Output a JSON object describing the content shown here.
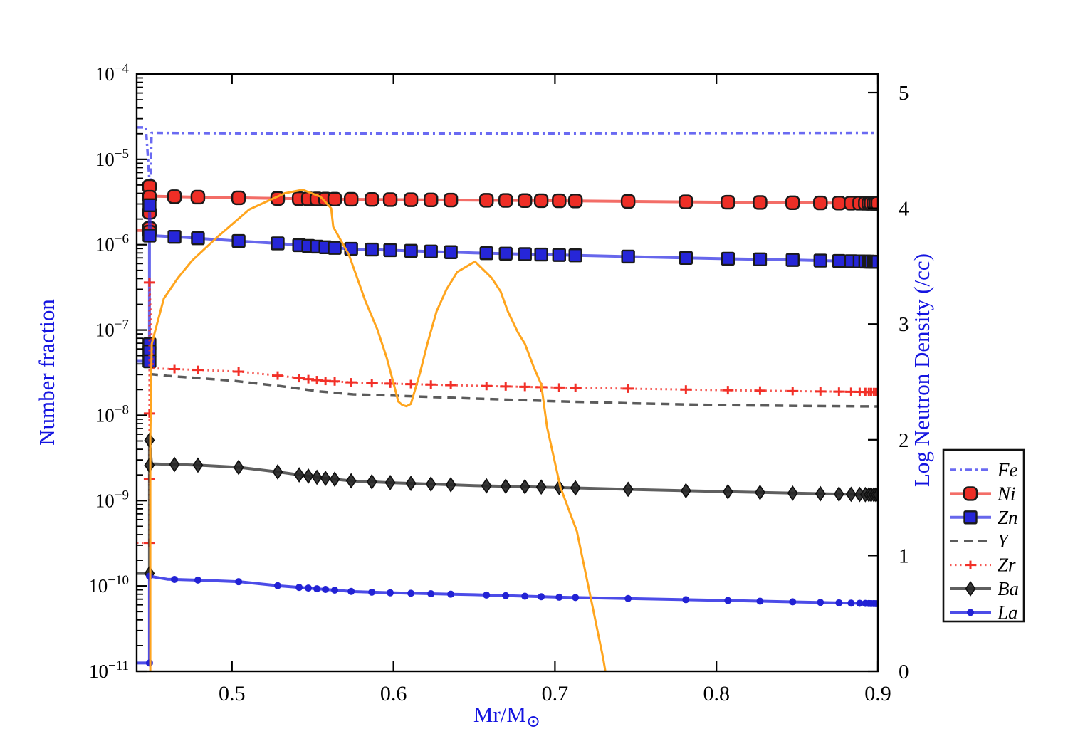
{
  "chart_data": {
    "type": "line",
    "title": "",
    "xlabel": "Mr/M",
    "xlabel_subscript": "⊙",
    "ylabel_left": "Number fraction",
    "ylabel_right": "Log Neutron Density (/cc)",
    "xlim": [
      0.441,
      0.9
    ],
    "x_ticks": [
      0.5,
      0.6,
      0.7,
      0.8,
      0.9
    ],
    "x_tick_labels": [
      "0.5",
      "0.6",
      "0.7",
      "0.8",
      "0.9"
    ],
    "ylim_left_log10": [
      -11,
      -4
    ],
    "y_ticks_left_exponents": [
      -4,
      -5,
      -6,
      -7,
      -8,
      -9,
      -10,
      -11
    ],
    "ylim_right": [
      0,
      5.16
    ],
    "y_ticks_right": [
      0,
      1,
      2,
      3,
      4,
      5
    ],
    "grid": false,
    "legend_position": "right-outside",
    "axis_color": "#000000",
    "label_color": "#1414e0",
    "marker_mesh_x": [
      0.4644,
      0.4789,
      0.5041,
      0.5283,
      0.5416,
      0.5473,
      0.5526,
      0.5579,
      0.5636,
      0.5738,
      0.5866,
      0.598,
      0.6108,
      0.6232,
      0.6355,
      0.6576,
      0.6695,
      0.6814,
      0.6915,
      0.7026,
      0.7127,
      0.7453,
      0.7811,
      0.8071,
      0.827,
      0.8472,
      0.8644,
      0.8759,
      0.8834,
      0.8887,
      0.8922,
      0.8944,
      0.8958,
      0.8975,
      0.8988,
      0.9
    ],
    "spike_x": 0.4489,
    "series": [
      {
        "name": "Fe",
        "axis": "left",
        "style": "dashdot",
        "marker": "none",
        "line_color": "rgba(80,80,240,0.85)",
        "line_width": 3.5,
        "points": [
          [
            0.441,
            2.37e-05
          ],
          [
            0.4467,
            2.37e-05
          ],
          [
            0.4494,
            4e-06
          ],
          [
            0.4502,
            2.05e-05
          ],
          [
            0.55,
            2e-05
          ],
          [
            0.9,
            2.05e-05
          ]
        ],
        "spike_markers": []
      },
      {
        "name": "Ni",
        "axis": "left",
        "style": "solid",
        "marker": "circle",
        "line_color": "rgba(238,52,45,0.72)",
        "line_width": 4,
        "marker_fill": "#ee2e26",
        "marker_edge": "#1a1a1a",
        "points": [
          [
            0.441,
            1.47e-06
          ],
          [
            0.4489,
            1.47e-06
          ],
          [
            0.4489,
            4.8e-06
          ],
          [
            0.4502,
            3.7e-06
          ],
          [
            0.48,
            3.6e-06
          ],
          [
            0.52,
            3.5e-06
          ],
          [
            0.56,
            3.42e-06
          ],
          [
            0.62,
            3.35e-06
          ],
          [
            0.7,
            3.27e-06
          ],
          [
            0.8,
            3.15e-06
          ],
          [
            0.9,
            3.05e-06
          ]
        ],
        "spike_markers": [
          4.8e-06,
          3.6e-06,
          2.4e-06,
          1.55e-06,
          1.4e-06
        ]
      },
      {
        "name": "Zn",
        "axis": "left",
        "style": "solid",
        "marker": "square",
        "line_color": "rgba(45,45,228,0.72)",
        "line_width": 4,
        "marker_fill": "#2626d8",
        "marker_edge": "#1a1a1a",
        "points": [
          [
            0.441,
            4.3e-08
          ],
          [
            0.4489,
            4.3e-08
          ],
          [
            0.4489,
            2.9e-06
          ],
          [
            0.4496,
            1.28e-06
          ],
          [
            0.47,
            1.22e-06
          ],
          [
            0.505,
            1.1e-06
          ],
          [
            0.53,
            1.03e-06
          ],
          [
            0.555,
            9.4e-07
          ],
          [
            0.575,
            8.9e-07
          ],
          [
            0.6,
            8.6e-07
          ],
          [
            0.65,
            8e-07
          ],
          [
            0.7,
            7.6e-07
          ],
          [
            0.78,
            7e-07
          ],
          [
            0.85,
            6.6e-07
          ],
          [
            0.9,
            6.3e-07
          ]
        ],
        "spike_markers": [
          2.9e-06,
          1.28e-06,
          6.8e-08,
          5.6e-08,
          4.3e-08
        ]
      },
      {
        "name": "Y",
        "axis": "left",
        "style": "dashed",
        "marker": "none",
        "line_color": "rgba(62,62,62,0.85)",
        "line_width": 3.5,
        "points": [
          [
            0.4489,
            3.05e-08
          ],
          [
            0.46,
            2.9e-08
          ],
          [
            0.5,
            2.55e-08
          ],
          [
            0.53,
            2.2e-08
          ],
          [
            0.555,
            1.9e-08
          ],
          [
            0.575,
            1.76e-08
          ],
          [
            0.6,
            1.7e-08
          ],
          [
            0.65,
            1.57e-08
          ],
          [
            0.7,
            1.46e-08
          ],
          [
            0.75,
            1.38e-08
          ],
          [
            0.8,
            1.32e-08
          ],
          [
            0.85,
            1.29e-08
          ],
          [
            0.9,
            1.27e-08
          ]
        ],
        "spike_markers": []
      },
      {
        "name": "Zr",
        "axis": "left",
        "style": "dotted",
        "marker": "plus",
        "line_color": "rgba(242,48,40,0.8)",
        "line_width": 3,
        "marker_fill": "#f23028",
        "marker_edge": "#f23028",
        "points": [
          [
            0.441,
            3.2e-10
          ],
          [
            0.4489,
            3.2e-10
          ],
          [
            0.4489,
            3.6e-07
          ],
          [
            0.451,
            3.55e-08
          ],
          [
            0.48,
            3.4e-08
          ],
          [
            0.505,
            3.25e-08
          ],
          [
            0.53,
            2.9e-08
          ],
          [
            0.555,
            2.55e-08
          ],
          [
            0.58,
            2.4e-08
          ],
          [
            0.62,
            2.3e-08
          ],
          [
            0.66,
            2.2e-08
          ],
          [
            0.7,
            2.12e-08
          ],
          [
            0.75,
            2.05e-08
          ],
          [
            0.8,
            1.98e-08
          ],
          [
            0.85,
            1.92e-08
          ],
          [
            0.9,
            1.87e-08
          ]
        ],
        "spike_markers": [
          3.6e-07,
          1.05e-08,
          1.8e-09,
          3.2e-10
        ]
      },
      {
        "name": "Ba",
        "axis": "left",
        "style": "solid",
        "marker": "diamond",
        "line_color": "rgba(55,55,55,0.8)",
        "line_width": 4,
        "marker_fill": "#262626",
        "marker_edge": "#0e0e0e",
        "points": [
          [
            0.441,
            1.4e-10
          ],
          [
            0.4489,
            1.4e-10
          ],
          [
            0.4489,
            5.1e-09
          ],
          [
            0.4502,
            2.7e-09
          ],
          [
            0.48,
            2.6e-09
          ],
          [
            0.505,
            2.45e-09
          ],
          [
            0.53,
            2.15e-09
          ],
          [
            0.555,
            1.85e-09
          ],
          [
            0.575,
            1.7e-09
          ],
          [
            0.6,
            1.62e-09
          ],
          [
            0.65,
            1.5e-09
          ],
          [
            0.7,
            1.43e-09
          ],
          [
            0.75,
            1.35e-09
          ],
          [
            0.8,
            1.28e-09
          ],
          [
            0.85,
            1.22e-09
          ],
          [
            0.9,
            1.17e-09
          ]
        ],
        "spike_markers": [
          5.1e-09,
          2.6e-09,
          1.4e-10
        ]
      },
      {
        "name": "La",
        "axis": "left",
        "style": "solid",
        "marker": "dot",
        "line_color": "rgba(45,45,228,0.85)",
        "line_width": 4,
        "marker_fill": "#2222d4",
        "marker_edge": "#2222d4",
        "points": [
          [
            0.441,
            1.25e-11
          ],
          [
            0.4489,
            1.25e-11
          ],
          [
            0.4489,
            1.3e-10
          ],
          [
            0.46,
            1.2e-10
          ],
          [
            0.48,
            1.17e-10
          ],
          [
            0.505,
            1.12e-10
          ],
          [
            0.53,
            1e-10
          ],
          [
            0.555,
            9.2e-11
          ],
          [
            0.575,
            8.6e-11
          ],
          [
            0.6,
            8.3e-11
          ],
          [
            0.65,
            7.9e-11
          ],
          [
            0.7,
            7.4e-11
          ],
          [
            0.75,
            7.1e-11
          ],
          [
            0.8,
            6.8e-11
          ],
          [
            0.85,
            6.5e-11
          ],
          [
            0.9,
            6.2e-11
          ]
        ],
        "spike_markers": [
          1.3e-10,
          1.25e-11
        ]
      }
    ],
    "neutron_density": {
      "name": "Neutron Density",
      "axis": "right",
      "line_color": "#ffa51e",
      "line_width": 3,
      "points": [
        [
          0.4494,
          0.0
        ],
        [
          0.4494,
          2.0
        ],
        [
          0.4503,
          2.83
        ],
        [
          0.4578,
          3.22
        ],
        [
          0.4666,
          3.4
        ],
        [
          0.4754,
          3.55
        ],
        [
          0.4908,
          3.75
        ],
        [
          0.5107,
          3.99
        ],
        [
          0.5327,
          4.13
        ],
        [
          0.5438,
          4.16
        ],
        [
          0.5548,
          4.1
        ],
        [
          0.5614,
          4.0
        ],
        [
          0.5627,
          3.84
        ],
        [
          0.5724,
          3.6
        ],
        [
          0.5826,
          3.2
        ],
        [
          0.5901,
          2.95
        ],
        [
          0.5958,
          2.71
        ],
        [
          0.6002,
          2.48
        ],
        [
          0.603,
          2.33
        ],
        [
          0.6055,
          2.3
        ],
        [
          0.608,
          2.29
        ],
        [
          0.6108,
          2.31
        ],
        [
          0.6165,
          2.58
        ],
        [
          0.621,
          2.83
        ],
        [
          0.6267,
          3.11
        ],
        [
          0.6329,
          3.3
        ],
        [
          0.6395,
          3.45
        ],
        [
          0.6505,
          3.54
        ],
        [
          0.6607,
          3.4
        ],
        [
          0.6664,
          3.28
        ],
        [
          0.6708,
          3.11
        ],
        [
          0.677,
          2.93
        ],
        [
          0.6814,
          2.83
        ],
        [
          0.6871,
          2.62
        ],
        [
          0.6915,
          2.48
        ],
        [
          0.6951,
          2.11
        ],
        [
          0.7034,
          1.59
        ],
        [
          0.7136,
          1.21
        ],
        [
          0.7224,
          0.62
        ],
        [
          0.7299,
          0.11
        ],
        [
          0.7312,
          0.0
        ]
      ]
    },
    "legend": {
      "entries": [
        {
          "label": "Fe"
        },
        {
          "label": "Ni"
        },
        {
          "label": "Zn"
        },
        {
          "label": "Y"
        },
        {
          "label": "Zr"
        },
        {
          "label": "Ba"
        },
        {
          "label": "La"
        }
      ]
    }
  }
}
